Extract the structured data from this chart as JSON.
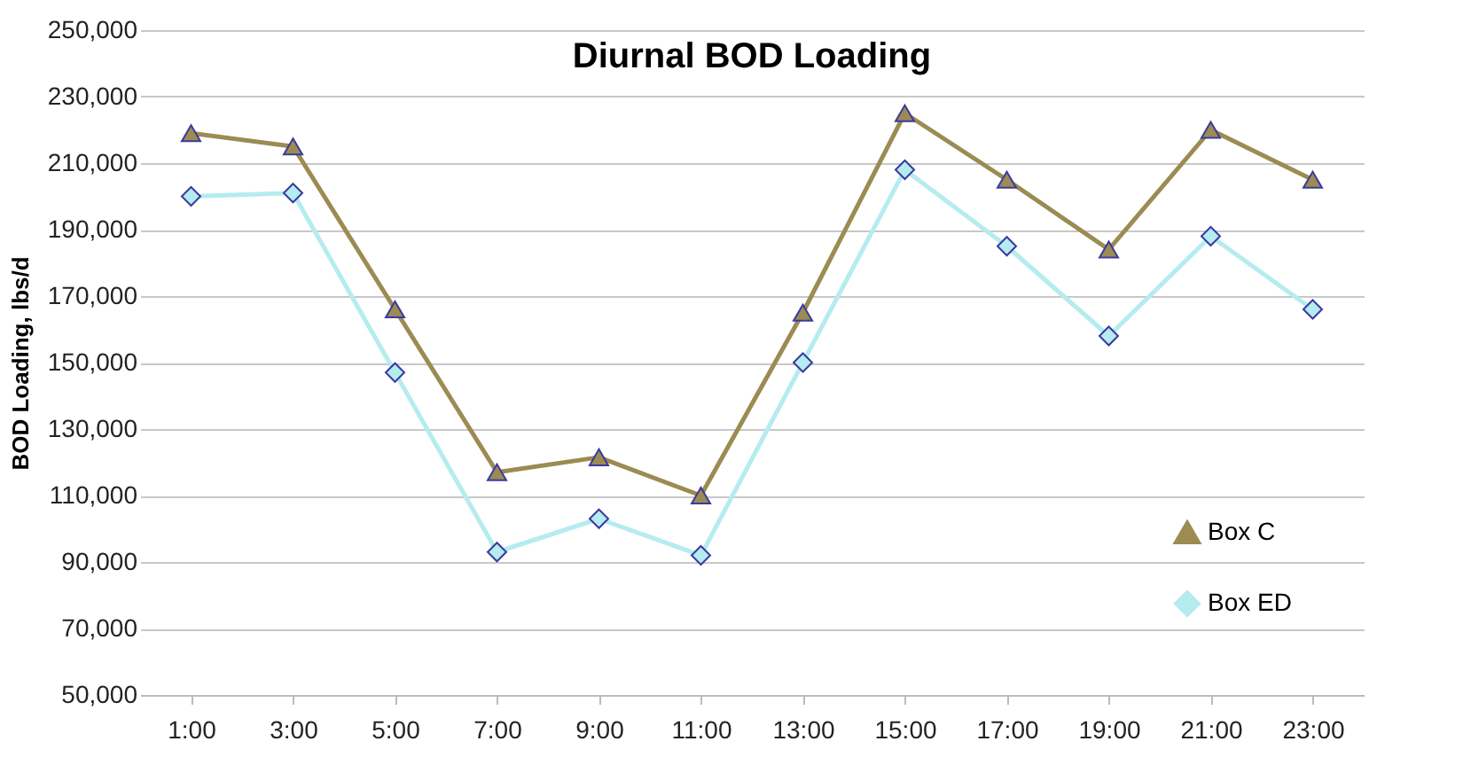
{
  "chart_data": {
    "type": "line",
    "title": "Diurnal BOD Loading",
    "ylabel": "BOD Loading, lbs/d",
    "categories": [
      "1:00",
      "3:00",
      "5:00",
      "7:00",
      "9:00",
      "11:00",
      "13:00",
      "15:00",
      "17:00",
      "19:00",
      "21:00",
      "23:00"
    ],
    "series": [
      {
        "name": "Box C",
        "color": "#9c8b52",
        "marker": "triangle",
        "values": [
          219000,
          215000,
          166000,
          117000,
          121500,
          110000,
          165000,
          225000,
          205000,
          184000,
          220000,
          205000
        ]
      },
      {
        "name": "Box ED",
        "color": "#b5ecef",
        "marker": "diamond",
        "values": [
          200000,
          201000,
          147000,
          93000,
          103000,
          92000,
          150000,
          208000,
          185000,
          158000,
          188000,
          166000
        ]
      }
    ],
    "ylim": [
      50000,
      250000
    ],
    "yticks": [
      {
        "value": 50000,
        "label": "50,000"
      },
      {
        "value": 70000,
        "label": "70,000"
      },
      {
        "value": 90000,
        "label": "90,000"
      },
      {
        "value": 110000,
        "label": "110,000"
      },
      {
        "value": 130000,
        "label": "130,000"
      },
      {
        "value": 150000,
        "label": "150,000"
      },
      {
        "value": 170000,
        "label": "170,000"
      },
      {
        "value": 190000,
        "label": "190,000"
      },
      {
        "value": 210000,
        "label": "210,000"
      },
      {
        "value": 230000,
        "label": "230,000"
      },
      {
        "value": 250000,
        "label": "250,000"
      }
    ],
    "grid": "y",
    "legend": "bottom right"
  }
}
